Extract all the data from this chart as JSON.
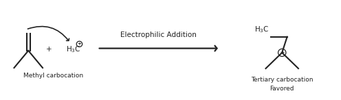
{
  "bg_color": "#ffffff",
  "text_color": "#222222",
  "title": "Electrophilic Addition",
  "label_left": "Methyl carbocation",
  "label_right_1": "Tertiary carbocation",
  "label_right_2": "Favored",
  "plus_sign": "+",
  "figsize": [
    4.96,
    1.46
  ],
  "dpi": 100
}
